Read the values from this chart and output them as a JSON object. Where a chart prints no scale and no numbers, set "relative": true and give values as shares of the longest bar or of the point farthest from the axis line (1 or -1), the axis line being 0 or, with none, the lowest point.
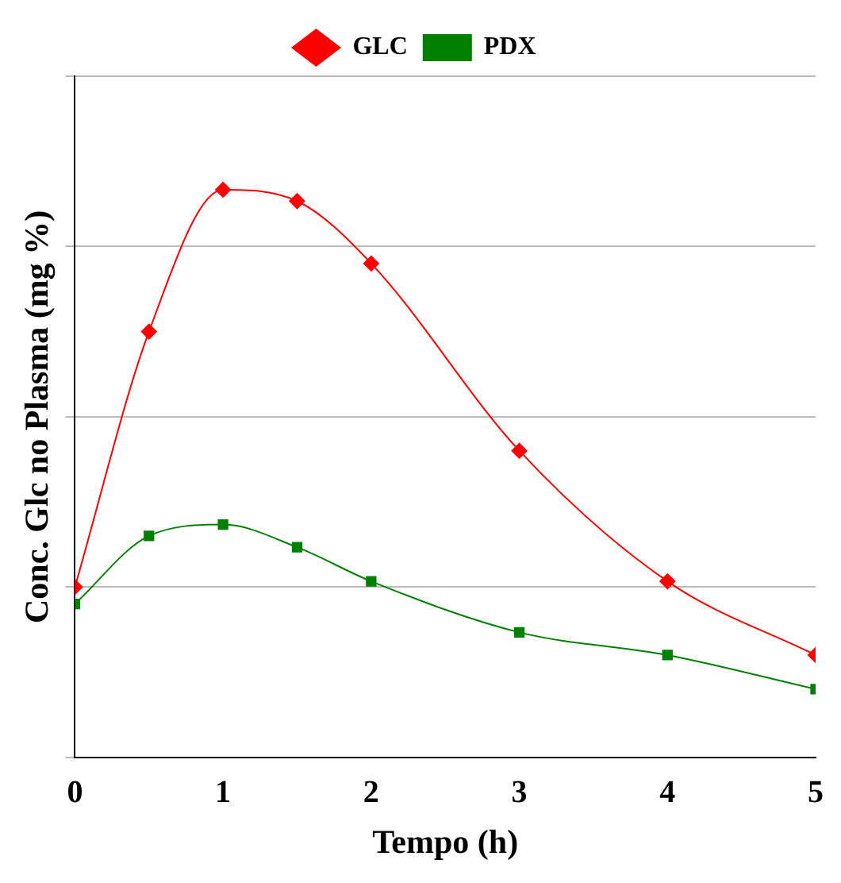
{
  "chart_data": {
    "type": "line",
    "xlabel": "Tempo (h)",
    "ylabel": "Conc. Glc no Plasma (mg %)",
    "relative": true,
    "x": [
      0,
      0.5,
      1,
      1.5,
      2,
      3,
      4,
      5
    ],
    "xlim": [
      0,
      5
    ],
    "xticks": [
      0,
      1,
      2,
      3,
      4,
      5
    ],
    "series": [
      {
        "name": "GLC",
        "color": "#ff0000",
        "marker": "diamond",
        "values": [
          0.3,
          0.75,
          1,
          0.98,
          0.87,
          0.54,
          0.31,
          0.18
        ]
      },
      {
        "name": "PDX",
        "color": "#008000",
        "marker": "square",
        "values": [
          0.27,
          0.39,
          0.41,
          0.37,
          0.31,
          0.22,
          0.18,
          0.12
        ]
      }
    ],
    "grid": "y",
    "legend": "top",
    "line_style": "solid"
  }
}
